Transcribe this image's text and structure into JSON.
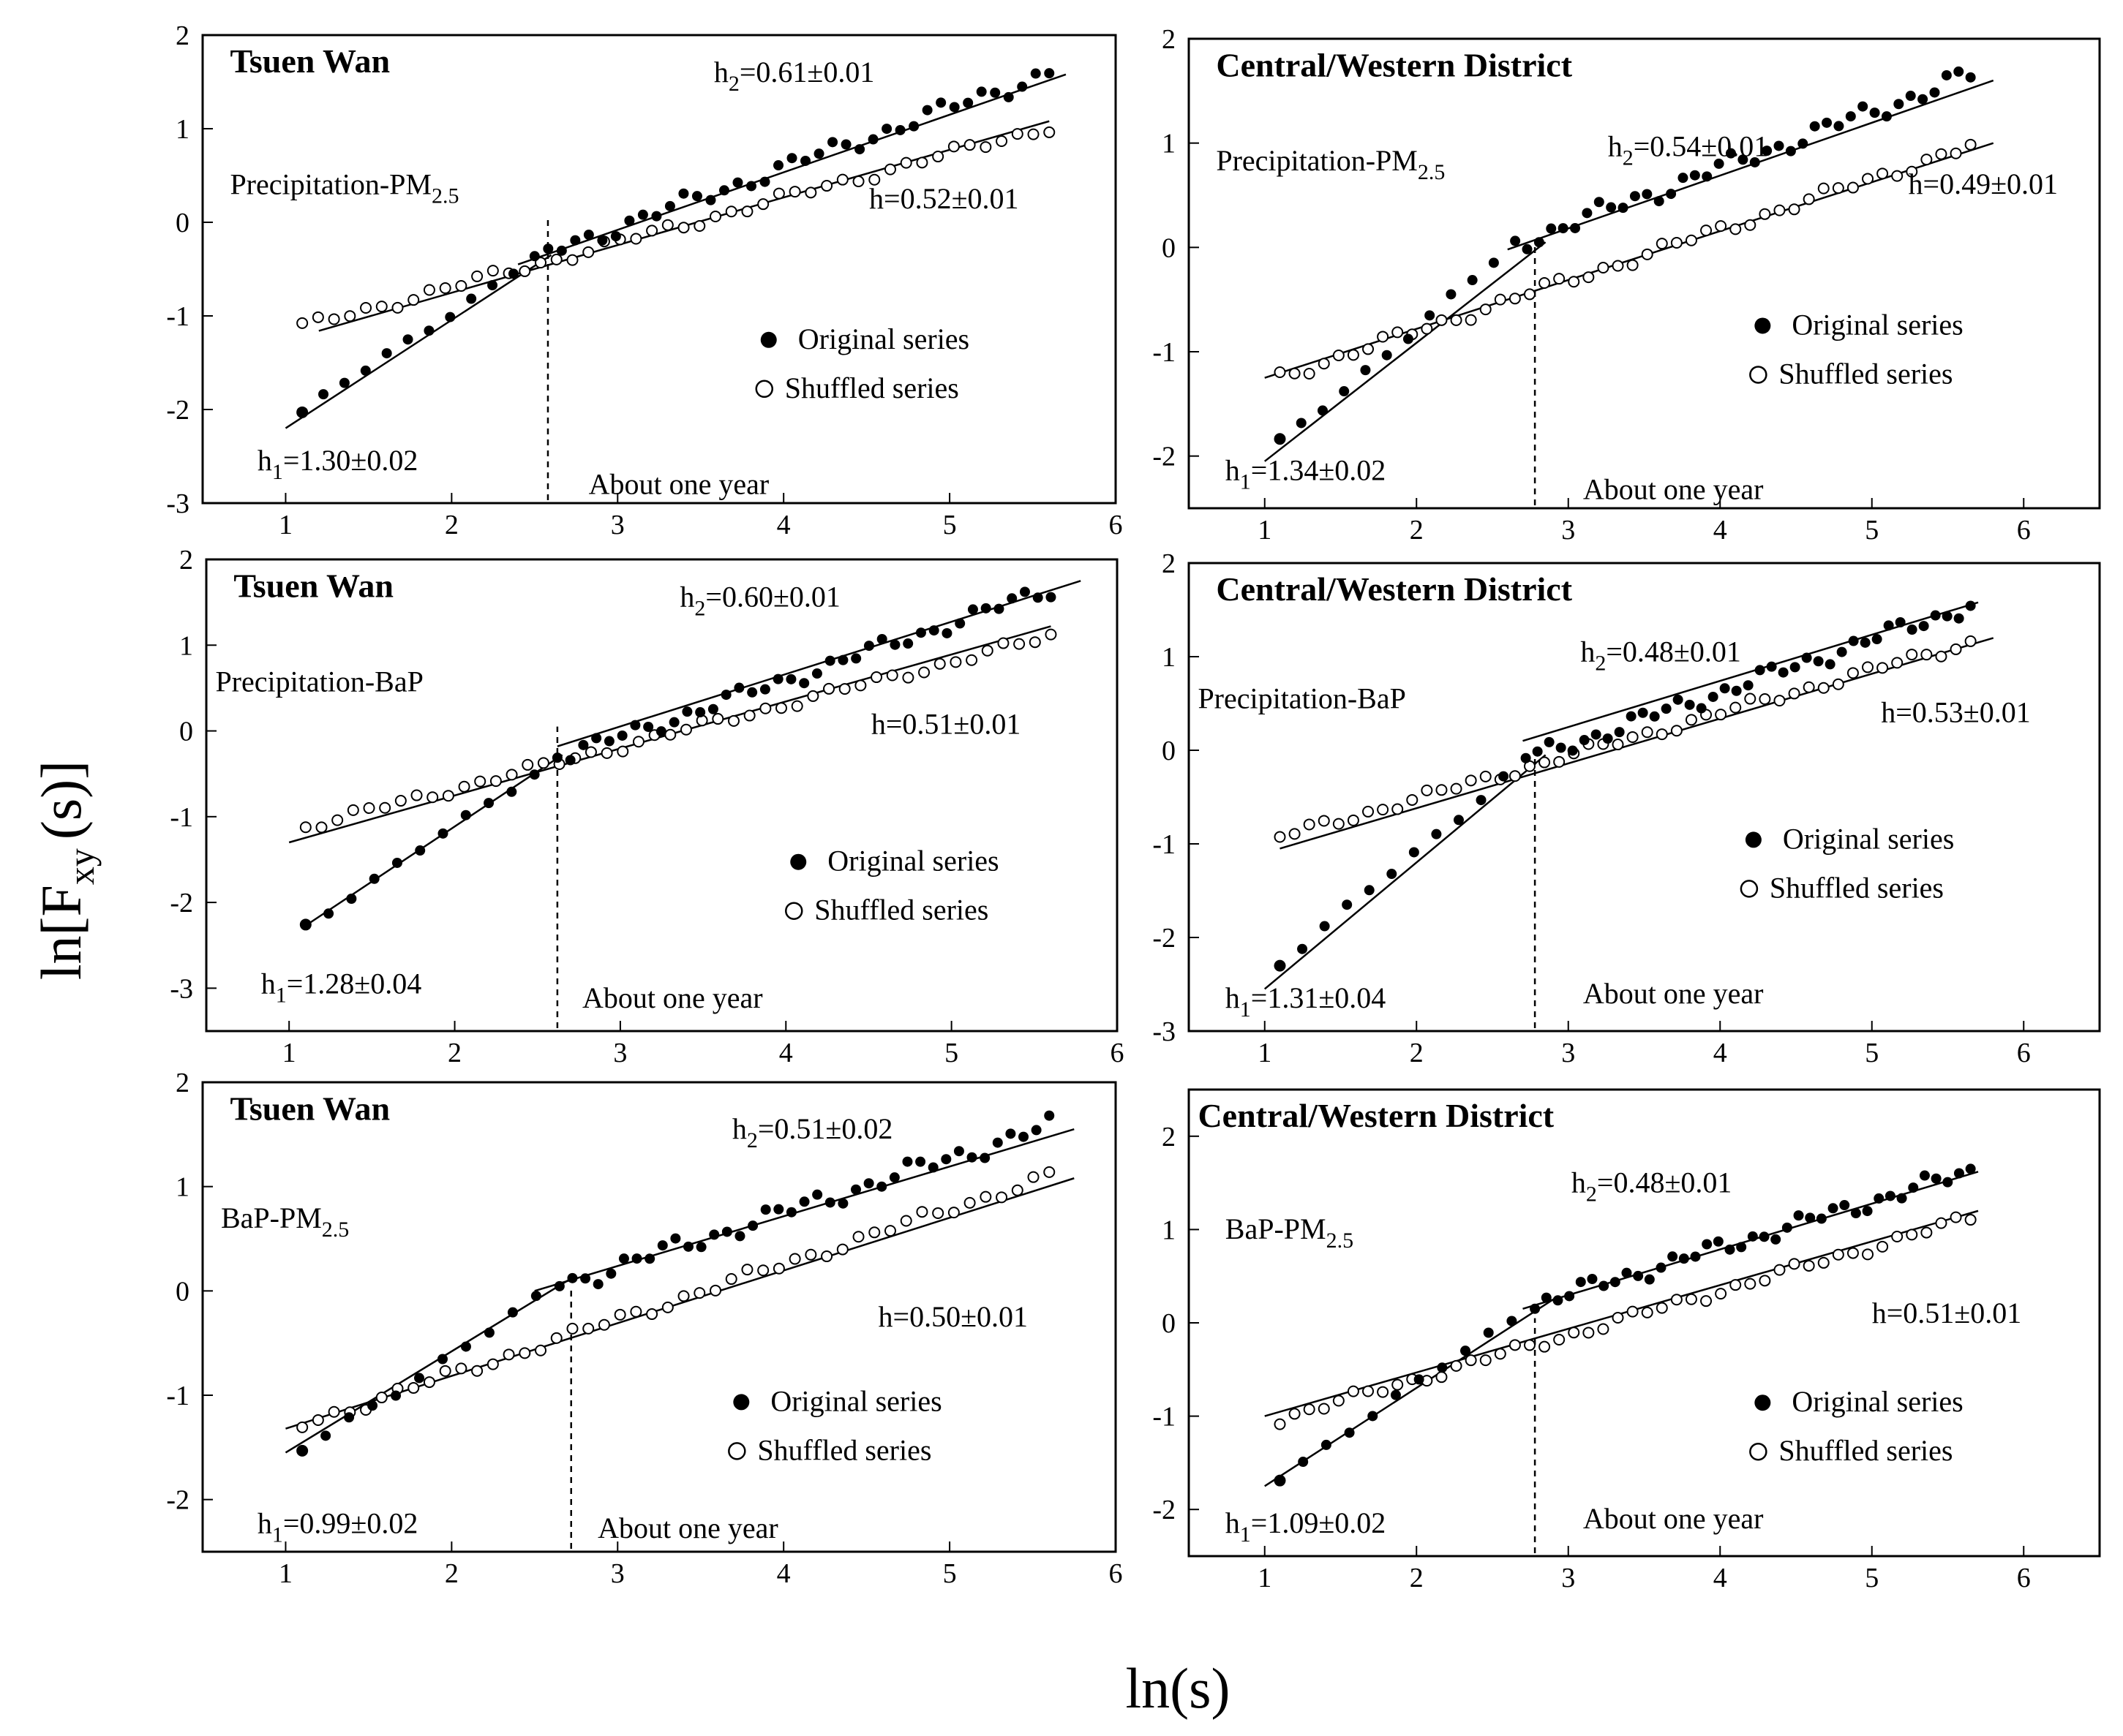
{
  "figure": {
    "ylabel_main": "ln[F",
    "ylabel_sub": "xy",
    "ylabel_tail": "(s)]",
    "xlabel": "ln(s)"
  },
  "chart_data": [
    {
      "type": "scatter",
      "title": "Tsuen Wan",
      "subtitle_main": "Precipitation-PM",
      "subtitle_sub": "2.5",
      "xlim": [
        0.5,
        6
      ],
      "ylim": [
        -3,
        2
      ],
      "xticks": [
        1,
        2,
        3,
        4,
        5,
        6
      ],
      "yticks": [
        2,
        1,
        0,
        -1,
        -2,
        -3
      ],
      "crossover_x": 2.58,
      "crossover_label": "About one year",
      "h1": {
        "prefix": "h",
        "sub": "1",
        "value": "=1.30±0.02"
      },
      "h2": {
        "prefix": "h",
        "sub": "2",
        "value": "=0.61±0.01"
      },
      "h_shuffled": "h=0.52±0.01",
      "legend": [
        "Original series",
        "Shuffled series"
      ],
      "original": {
        "x_start": 1.1,
        "x_end": 5.6,
        "break_x": 2.5,
        "y_start": -2.03,
        "y_break": -0.37,
        "y_end": 1.6
      },
      "shuffled": {
        "x_start": 1.1,
        "x_end": 5.6,
        "y_start": -1.12,
        "y_end": 1.02
      },
      "fit_original_1": [
        [
          1.0,
          -2.2
        ],
        [
          2.6,
          -0.35
        ]
      ],
      "fit_original_2": [
        [
          2.4,
          -0.45
        ],
        [
          5.7,
          1.58
        ]
      ],
      "fit_shuffled": [
        [
          1.2,
          -1.16
        ],
        [
          5.6,
          1.08
        ]
      ]
    },
    {
      "type": "scatter",
      "title": "Central/Western District",
      "subtitle_main": "Precipitation-PM",
      "subtitle_sub": "2.5",
      "xlim": [
        0.5,
        6.5
      ],
      "ylim": [
        -2.5,
        2
      ],
      "xticks": [
        1,
        2,
        3,
        4,
        5,
        6
      ],
      "yticks": [
        2,
        1,
        0,
        -1,
        -2
      ],
      "crossover_x": 2.78,
      "crossover_label": "About one year",
      "h1": {
        "prefix": "h",
        "sub": "1",
        "value": "=1.34±0.02"
      },
      "h2": {
        "prefix": "h",
        "sub": "2",
        "value": "=0.54±0.01"
      },
      "h_shuffled": "h=0.49±0.01",
      "legend": [
        "Original series",
        "Shuffled series"
      ],
      "original": {
        "x_start": 1.1,
        "x_end": 5.65,
        "break_x": 2.65,
        "y_start": -1.88,
        "y_break": 0.03,
        "y_end": 1.65
      },
      "shuffled": {
        "x_start": 1.1,
        "x_end": 5.65,
        "y_start": -1.24,
        "y_end": 0.97
      },
      "fit_original_1": [
        [
          1.0,
          -2.05
        ],
        [
          2.85,
          0.05
        ]
      ],
      "fit_original_2": [
        [
          2.6,
          -0.02
        ],
        [
          5.8,
          1.6
        ]
      ],
      "fit_shuffled": [
        [
          1.0,
          -1.25
        ],
        [
          5.8,
          1.0
        ]
      ]
    },
    {
      "type": "scatter",
      "title": "Tsuen Wan",
      "subtitle_main": "Precipitation-BaP",
      "subtitle_sub": "",
      "xlim": [
        0.5,
        6
      ],
      "ylim": [
        -3.5,
        2
      ],
      "xticks": [
        1,
        2,
        3,
        4,
        5,
        6
      ],
      "yticks": [
        2,
        1,
        0,
        -1,
        -2,
        -3
      ],
      "crossover_x": 2.62,
      "crossover_label": "About one year",
      "h1": {
        "prefix": "h",
        "sub": "1",
        "value": "=1.28±0.04"
      },
      "h2": {
        "prefix": "h",
        "sub": "2",
        "value": "=0.60±0.01"
      },
      "h_shuffled": "h=0.51±0.01",
      "legend": [
        "Original series",
        "Shuffled series"
      ],
      "original": {
        "x_start": 1.1,
        "x_end": 5.6,
        "break_x": 2.62,
        "y_start": -2.27,
        "y_break": -0.32,
        "y_end": 1.65
      },
      "shuffled": {
        "x_start": 1.1,
        "x_end": 5.6,
        "y_start": -1.12,
        "y_end": 1.1
      },
      "fit_original_1": [
        [
          1.1,
          -2.27
        ],
        [
          2.65,
          -0.28
        ]
      ],
      "fit_original_2": [
        [
          2.62,
          -0.18
        ],
        [
          5.78,
          1.75
        ]
      ],
      "fit_shuffled": [
        [
          1.0,
          -1.3
        ],
        [
          5.6,
          1.22
        ]
      ]
    },
    {
      "type": "scatter",
      "title": "Central/Western District",
      "subtitle_main": "Precipitation-BaP",
      "subtitle_sub": "",
      "xlim": [
        0.5,
        6.5
      ],
      "ylim": [
        -3,
        2
      ],
      "xticks": [
        1,
        2,
        3,
        4,
        5,
        6
      ],
      "yticks": [
        2,
        1,
        0,
        -1,
        -2,
        -3
      ],
      "crossover_x": 2.78,
      "crossover_label": "About one year",
      "h1": {
        "prefix": "h",
        "sub": "1",
        "value": "=1.31±0.04"
      },
      "h2": {
        "prefix": "h",
        "sub": "2",
        "value": "=0.48±0.01"
      },
      "h_shuffled": "h=0.53±0.01",
      "legend": [
        "Original series",
        "Shuffled series"
      ],
      "original": {
        "x_start": 1.1,
        "x_end": 5.65,
        "break_x": 2.72,
        "y_start": -2.3,
        "y_break": -0.1,
        "y_end": 1.55
      },
      "shuffled": {
        "x_start": 1.1,
        "x_end": 5.65,
        "y_start": -0.93,
        "y_end": 1.15
      },
      "fit_original_1": [
        [
          1.0,
          -2.55
        ],
        [
          2.85,
          -0.05
        ]
      ],
      "fit_original_2": [
        [
          2.7,
          0.1
        ],
        [
          5.7,
          1.58
        ]
      ],
      "fit_shuffled": [
        [
          1.1,
          -1.05
        ],
        [
          5.8,
          1.2
        ]
      ]
    },
    {
      "type": "scatter",
      "title": "Tsuen Wan",
      "subtitle_main": "BaP-PM",
      "subtitle_sub": "2.5",
      "xlim": [
        0.5,
        6
      ],
      "ylim": [
        -2.5,
        2
      ],
      "xticks": [
        1,
        2,
        3,
        4,
        5,
        6
      ],
      "yticks": [
        2,
        1,
        0,
        -1,
        -2
      ],
      "crossover_x": 2.72,
      "crossover_label": "About one year",
      "h1": {
        "prefix": "h",
        "sub": "1",
        "value": "=0.99±0.02"
      },
      "h2": {
        "prefix": "h",
        "sub": "2",
        "value": "=0.51±0.02"
      },
      "h_shuffled": "h=0.50±0.01",
      "legend": [
        "Original series",
        "Shuffled series"
      ],
      "original": {
        "x_start": 1.1,
        "x_end": 5.6,
        "break_x": 2.65,
        "y_start": -1.53,
        "y_break": 0.05,
        "y_end": 1.58
      },
      "shuffled": {
        "x_start": 1.1,
        "x_end": 5.6,
        "y_start": -1.28,
        "y_end": 1.1
      },
      "fit_original_1": [
        [
          1.0,
          -1.55
        ],
        [
          2.7,
          0.1
        ]
      ],
      "fit_original_2": [
        [
          2.5,
          0.0
        ],
        [
          5.75,
          1.55
        ]
      ],
      "fit_shuffled": [
        [
          1.0,
          -1.32
        ],
        [
          5.75,
          1.08
        ]
      ]
    },
    {
      "type": "scatter",
      "title": "Central/Western District",
      "subtitle_main": "BaP-PM",
      "subtitle_sub": "2.5",
      "xlim": [
        0.5,
        6.5
      ],
      "ylim": [
        -2.5,
        2.5
      ],
      "xticks": [
        1,
        2,
        3,
        4,
        5,
        6
      ],
      "yticks": [
        2,
        1,
        0,
        -1,
        -2
      ],
      "crossover_x": 2.78,
      "crossover_label": "About one year",
      "h1": {
        "prefix": "h",
        "sub": "1",
        "value": "=1.09±0.02"
      },
      "h2": {
        "prefix": "h",
        "sub": "2",
        "value": "=0.48±0.01"
      },
      "h_shuffled": "h=0.51±0.01",
      "legend": [
        "Original series",
        "Shuffled series"
      ],
      "original": {
        "x_start": 1.1,
        "x_end": 5.65,
        "break_x": 2.78,
        "y_start": -1.65,
        "y_break": 0.2,
        "y_end": 1.62
      },
      "shuffled": {
        "x_start": 1.1,
        "x_end": 5.65,
        "y_start": -1.03,
        "y_end": 1.12
      },
      "fit_original_1": [
        [
          1.0,
          -1.75
        ],
        [
          2.9,
          0.25
        ]
      ],
      "fit_original_2": [
        [
          2.7,
          0.15
        ],
        [
          5.7,
          1.62
        ]
      ],
      "fit_shuffled": [
        [
          1.0,
          -1.0
        ],
        [
          5.7,
          1.2
        ]
      ]
    }
  ]
}
